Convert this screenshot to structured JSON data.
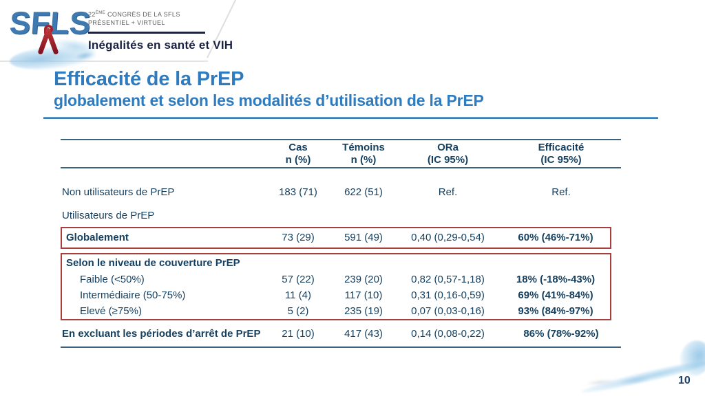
{
  "header": {
    "logo_text": "SFLS",
    "congress_num": "22",
    "congress_ord": "ÈME",
    "congress_rest": "CONGRÈS DE LA SFLS",
    "congress_line2": "PRÉSENTIEL + VIRTUEL",
    "banner_title": "Inégalités en santé et VIH"
  },
  "title": {
    "line1": "Efficacité de la PrEP",
    "line2": "globalement et selon les modalités d’utilisation de la PrEP"
  },
  "table": {
    "columns": [
      {
        "label": "Cas",
        "sub": "n (%)"
      },
      {
        "label": "Témoins",
        "sub": "n (%)"
      },
      {
        "label": "ORa",
        "sub": "(IC 95%)"
      },
      {
        "label": "Efficacité",
        "sub": "(IC 95%)"
      }
    ],
    "rows": [
      {
        "label": "Non utilisateurs de PrEP",
        "cas": "183 (71)",
        "temoins": "622 (51)",
        "ora": "Ref.",
        "eff": "Ref."
      },
      {
        "label": "Utilisateurs de PrEP",
        "cas": "",
        "temoins": "",
        "ora": "",
        "eff": ""
      },
      {
        "label": "Globalement",
        "cas": "73 (29)",
        "temoins": "591 (49)",
        "ora": "0,40 (0,29-0,54)",
        "eff": "60% (46%-71%)"
      },
      {
        "label": "Selon le niveau de couverture PrEP",
        "cas": "",
        "temoins": "",
        "ora": "",
        "eff": ""
      },
      {
        "label": "Faible (<50%)",
        "cas": "57 (22)",
        "temoins": "239 (20)",
        "ora": "0,82 (0,57-1,18)",
        "eff": "18% (-18%-43%)"
      },
      {
        "label": "Intermédiaire (50-75%)",
        "cas": "11 (4)",
        "temoins": "117 (10)",
        "ora": "0,31 (0,16-0,59)",
        "eff": "69% (41%-84%)"
      },
      {
        "label": "Elevé (≥75%)",
        "cas": "5 (2)",
        "temoins": "235 (19)",
        "ora": "0,07 (0,03-0,16)",
        "eff": "93% (84%-97%)"
      },
      {
        "label": "En excluant les périodes d’arrêt de PrEP",
        "cas": "21 (10)",
        "temoins": "417 (43)",
        "ora": "0,14 (0,08-0,22)",
        "eff": "86% (78%-92%)"
      }
    ]
  },
  "footer": {
    "page_number": "10"
  },
  "colors": {
    "title_blue": "#2e7bbf",
    "table_navy": "#16405f",
    "highlight_red": "#a93e3e",
    "rule_blue": "#2e75b6",
    "line_slate": "#3e617b"
  }
}
